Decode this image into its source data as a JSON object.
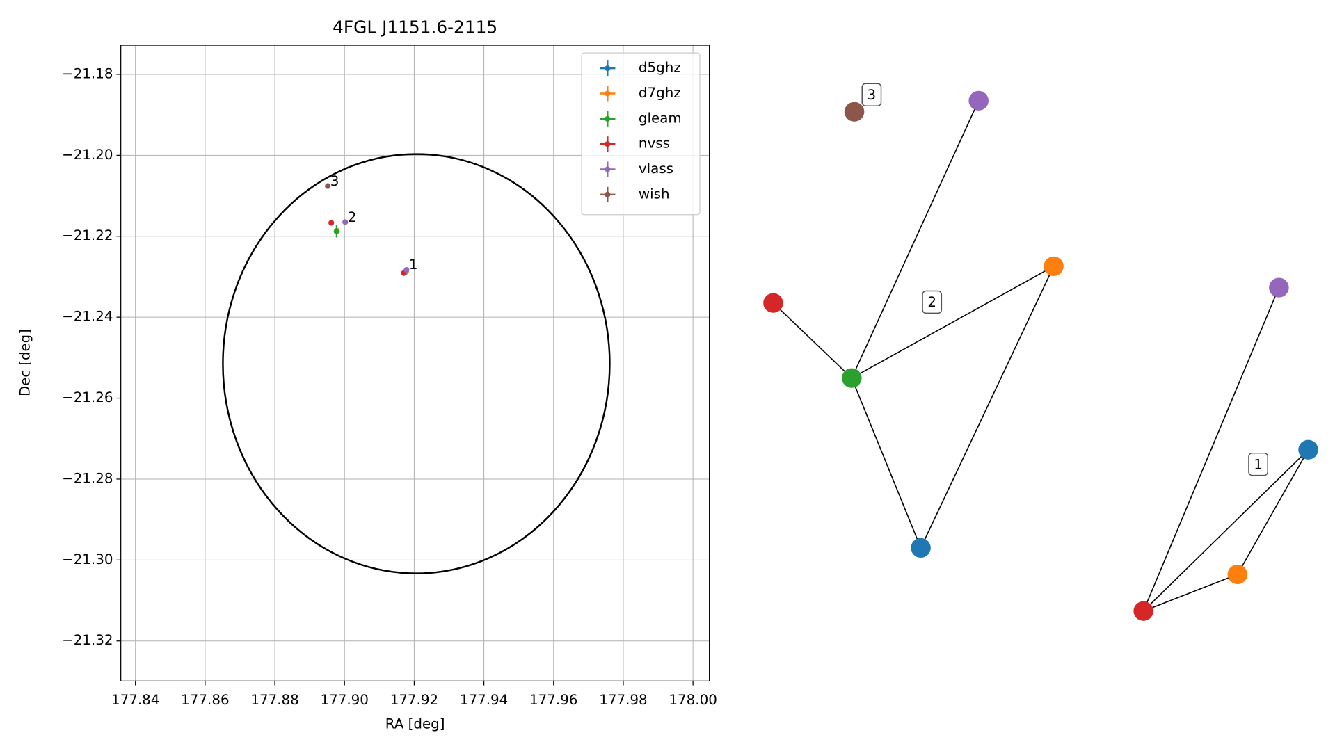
{
  "chart_data": [
    {
      "type": "scatter",
      "title": "4FGL J1151.6-2115",
      "xlabel": "RA [deg]",
      "ylabel": "Dec [deg]",
      "xlim": [
        177.8358,
        178.0047
      ],
      "ylim": [
        -21.3299,
        -21.1728
      ],
      "xticks": [
        177.84,
        177.86,
        177.88,
        {
          "value": 177.9,
          "label": "177.90"
        },
        177.92,
        177.94,
        177.96,
        177.98,
        {
          "value": 178,
          "label": "178.00"
        }
      ],
      "yticks": [
        {
          "value": -21.18,
          "label": "−21.18"
        },
        {
          "value": -21.2,
          "label": "−21.20"
        },
        {
          "value": -21.22,
          "label": "−21.22"
        },
        {
          "value": -21.24,
          "label": "−21.24"
        },
        {
          "value": -21.26,
          "label": "−21.26"
        },
        {
          "value": -21.28,
          "label": "−21.28"
        },
        {
          "value": -21.3,
          "label": "−21.30"
        },
        {
          "value": -21.32,
          "label": "−21.32"
        }
      ],
      "grid": true,
      "legend": "upper right",
      "series": [
        {
          "name": "d5ghz",
          "color": "#1f77b4",
          "x": [
            177.9176,
            177.8978
          ],
          "values": [
            -21.2288,
            -21.2187
          ]
        },
        {
          "name": "d7ghz",
          "color": "#ff7f0e",
          "x": [
            177.9177,
            177.8978
          ],
          "values": [
            -21.2287,
            -21.2186
          ]
        },
        {
          "name": "gleam",
          "color": "#2ca02c",
          "x": [
            177.8977
          ],
          "values": [
            -21.2188
          ],
          "yerr": [
            0.0015
          ]
        },
        {
          "name": "nvss",
          "color": "#d62728",
          "x": [
            177.917,
            177.8962
          ],
          "values": [
            -21.2291,
            -21.2167
          ]
        },
        {
          "name": "vlass",
          "color": "#9467bd",
          "x": [
            177.9178,
            177.9002
          ],
          "values": [
            -21.2283,
            -21.2165
          ]
        },
        {
          "name": "wish",
          "color": "#8c564b",
          "x": [
            177.8952
          ],
          "values": [
            -21.2076
          ]
        }
      ],
      "ellipse": {
        "center": [
          177.9206,
          -21.2515
        ],
        "width": 0.111,
        "height": 0.1036,
        "color": "#000000"
      },
      "annotations": [
        {
          "text": "1",
          "x": 177.9185,
          "y": -21.2272
        },
        {
          "text": "2",
          "x": 177.9009,
          "y": -21.2155
        },
        {
          "text": "3",
          "x": 177.8959,
          "y": -21.2066
        }
      ]
    },
    {
      "type": "network",
      "labels": [
        "1",
        "2",
        "3"
      ]
    }
  ]
}
